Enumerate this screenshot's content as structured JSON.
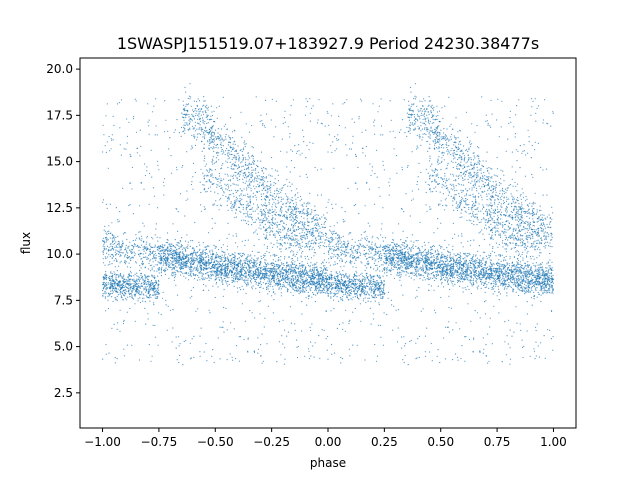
{
  "chart_data": {
    "type": "scatter",
    "title": "1SWASPJ151519.07+183927.9 Period 24230.38477s",
    "xlabel": "phase",
    "ylabel": "flux",
    "xlim": [
      -1.1,
      1.1
    ],
    "ylim": [
      0.6,
      20.6
    ],
    "xticks": [
      "−1.00",
      "−0.75",
      "−0.50",
      "−0.25",
      "0.00",
      "0.25",
      "0.50",
      "0.75",
      "1.00"
    ],
    "xtick_values": [
      -1.0,
      -0.75,
      -0.5,
      -0.25,
      0.0,
      0.25,
      0.5,
      0.75,
      1.0
    ],
    "yticks": [
      "2.5",
      "5.0",
      "7.5",
      "10.0",
      "12.5",
      "15.0",
      "17.5",
      "20.0"
    ],
    "ytick_values": [
      2.5,
      5.0,
      7.5,
      10.0,
      12.5,
      15.0,
      17.5,
      20.0
    ],
    "grid": false,
    "marker_color": "#1f77b4",
    "series": [
      {
        "branches": [
          {
            "x": [
              0.0,
              0.1,
              0.2,
              0.3,
              0.4,
              0.5,
              0.6,
              0.7,
              0.8,
              0.9,
              1.0
            ],
            "y": [
              10.5,
              10.2,
              10.0,
              9.8,
              9.6,
              9.3,
              9.1,
              8.95,
              8.8,
              8.65,
              8.5
            ]
          },
          {
            "x": [
              0.0,
              0.1,
              0.2,
              0.25
            ],
            "y": [
              8.4,
              8.3,
              8.25,
              8.2
            ]
          },
          {
            "x": [
              0.25,
              0.35,
              0.45,
              0.55,
              0.65,
              0.75,
              0.85,
              0.95,
              1.0
            ],
            "y": [
              9.9,
              9.7,
              9.5,
              9.35,
              9.2,
              9.05,
              8.9,
              8.75,
              8.6
            ]
          },
          {
            "x": [
              0.35,
              0.45,
              0.55,
              0.65,
              0.75,
              0.85,
              0.95,
              1.0
            ],
            "y": [
              17.5,
              17.0,
              15.8,
              14.5,
              13.2,
              12.3,
              11.4,
              11.0
            ]
          },
          {
            "x": [
              0.45,
              0.55,
              0.65,
              0.75,
              0.85,
              0.95
            ],
            "y": [
              14.5,
              13.5,
              12.5,
              11.6,
              10.9,
              10.5
            ]
          }
        ],
        "scatter_level": [
          4.0,
          18.5
        ]
      }
    ]
  }
}
